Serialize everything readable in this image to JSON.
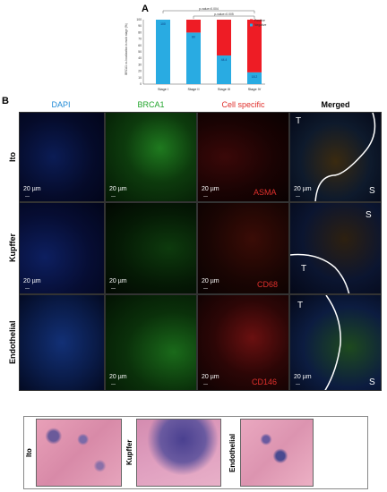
{
  "panel_a_letter": "A",
  "panel_b_letter": "B",
  "chart_data": {
    "type": "bar",
    "categories": [
      "Stage I",
      "Stage II",
      "Stage III",
      "Stage IV"
    ],
    "series": [
      {
        "name": "Negative",
        "values": [
          100,
          80,
          44.4,
          18.2
        ],
        "color": "#29abe2"
      },
      {
        "name": "Positive",
        "values": [
          0,
          20,
          55.6,
          81.8
        ],
        "color": "#ee1c25"
      }
    ],
    "data_labels": [
      "100",
      "80",
      "44.4",
      "18.2"
    ],
    "ylabel": "BRCA1 co-localization in each stage (%)",
    "yticks": [
      "0",
      "10",
      "20",
      "30",
      "40",
      "50",
      "60",
      "70",
      "80",
      "90",
      "100"
    ],
    "ylim": [
      0,
      100
    ],
    "legend": [
      "Positive",
      "Negative"
    ],
    "annotations": [
      "p-value=0.004",
      "p-value=0.005"
    ]
  },
  "columns": [
    "DAPI",
    "BRCA1",
    "Cell specific",
    "Merged"
  ],
  "column_colors": [
    "#1f8ad6",
    "#22a52c",
    "#e0302c",
    "#000000"
  ],
  "rows": [
    {
      "label": "Ito",
      "marker": "ASMA"
    },
    {
      "label": "Kupffer",
      "marker": "CD68"
    },
    {
      "label": "Endothelial",
      "marker": "CD146"
    }
  ],
  "scale_bar": "20 µm",
  "scale_tick": "—",
  "tumor_label": "T",
  "stroma_label": "S",
  "he_labels": [
    "Ito",
    "Kupffer",
    "Endothelial"
  ]
}
